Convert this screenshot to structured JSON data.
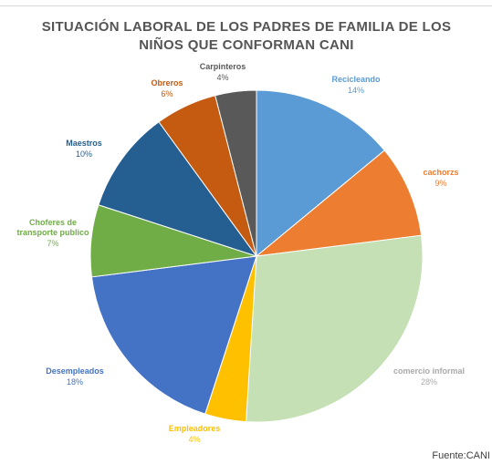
{
  "chart_data": {
    "type": "pie",
    "title_lines": [
      "SITUACIÓN LABORAL DE LOS PADRES DE FAMILIA DE LOS",
      "NIÑOS QUE CONFORMAN CANI"
    ],
    "slices": [
      {
        "label": "Recicleando",
        "pct_label": "14%",
        "value": 14,
        "color": "#5b9bd5"
      },
      {
        "label": "cachorzs",
        "pct_label": "9%",
        "value": 9,
        "color": "#ed7d31"
      },
      {
        "label": "comercio informal",
        "pct_label": "28%",
        "value": 28,
        "color": "#c5e0b4"
      },
      {
        "label": "Empleadores",
        "pct_label": "4%",
        "value": 4,
        "color": "#ffc000"
      },
      {
        "label": "Desempleados",
        "pct_label": "18%",
        "value": 18,
        "color": "#4472c4"
      },
      {
        "label": "Choferes de\ntransporte publico",
        "pct_label": "7%",
        "value": 7,
        "color": "#70ad47"
      },
      {
        "label": "Maestros",
        "pct_label": "10%",
        "value": 10,
        "color": "#255e91"
      },
      {
        "label": "Obreros",
        "pct_label": "6%",
        "value": 6,
        "color": "#c55a11"
      },
      {
        "label": "Carpinteros",
        "pct_label": "4%",
        "value": 4,
        "color": "#595959"
      }
    ]
  },
  "footer": {
    "source": "Fuente:CANI"
  }
}
